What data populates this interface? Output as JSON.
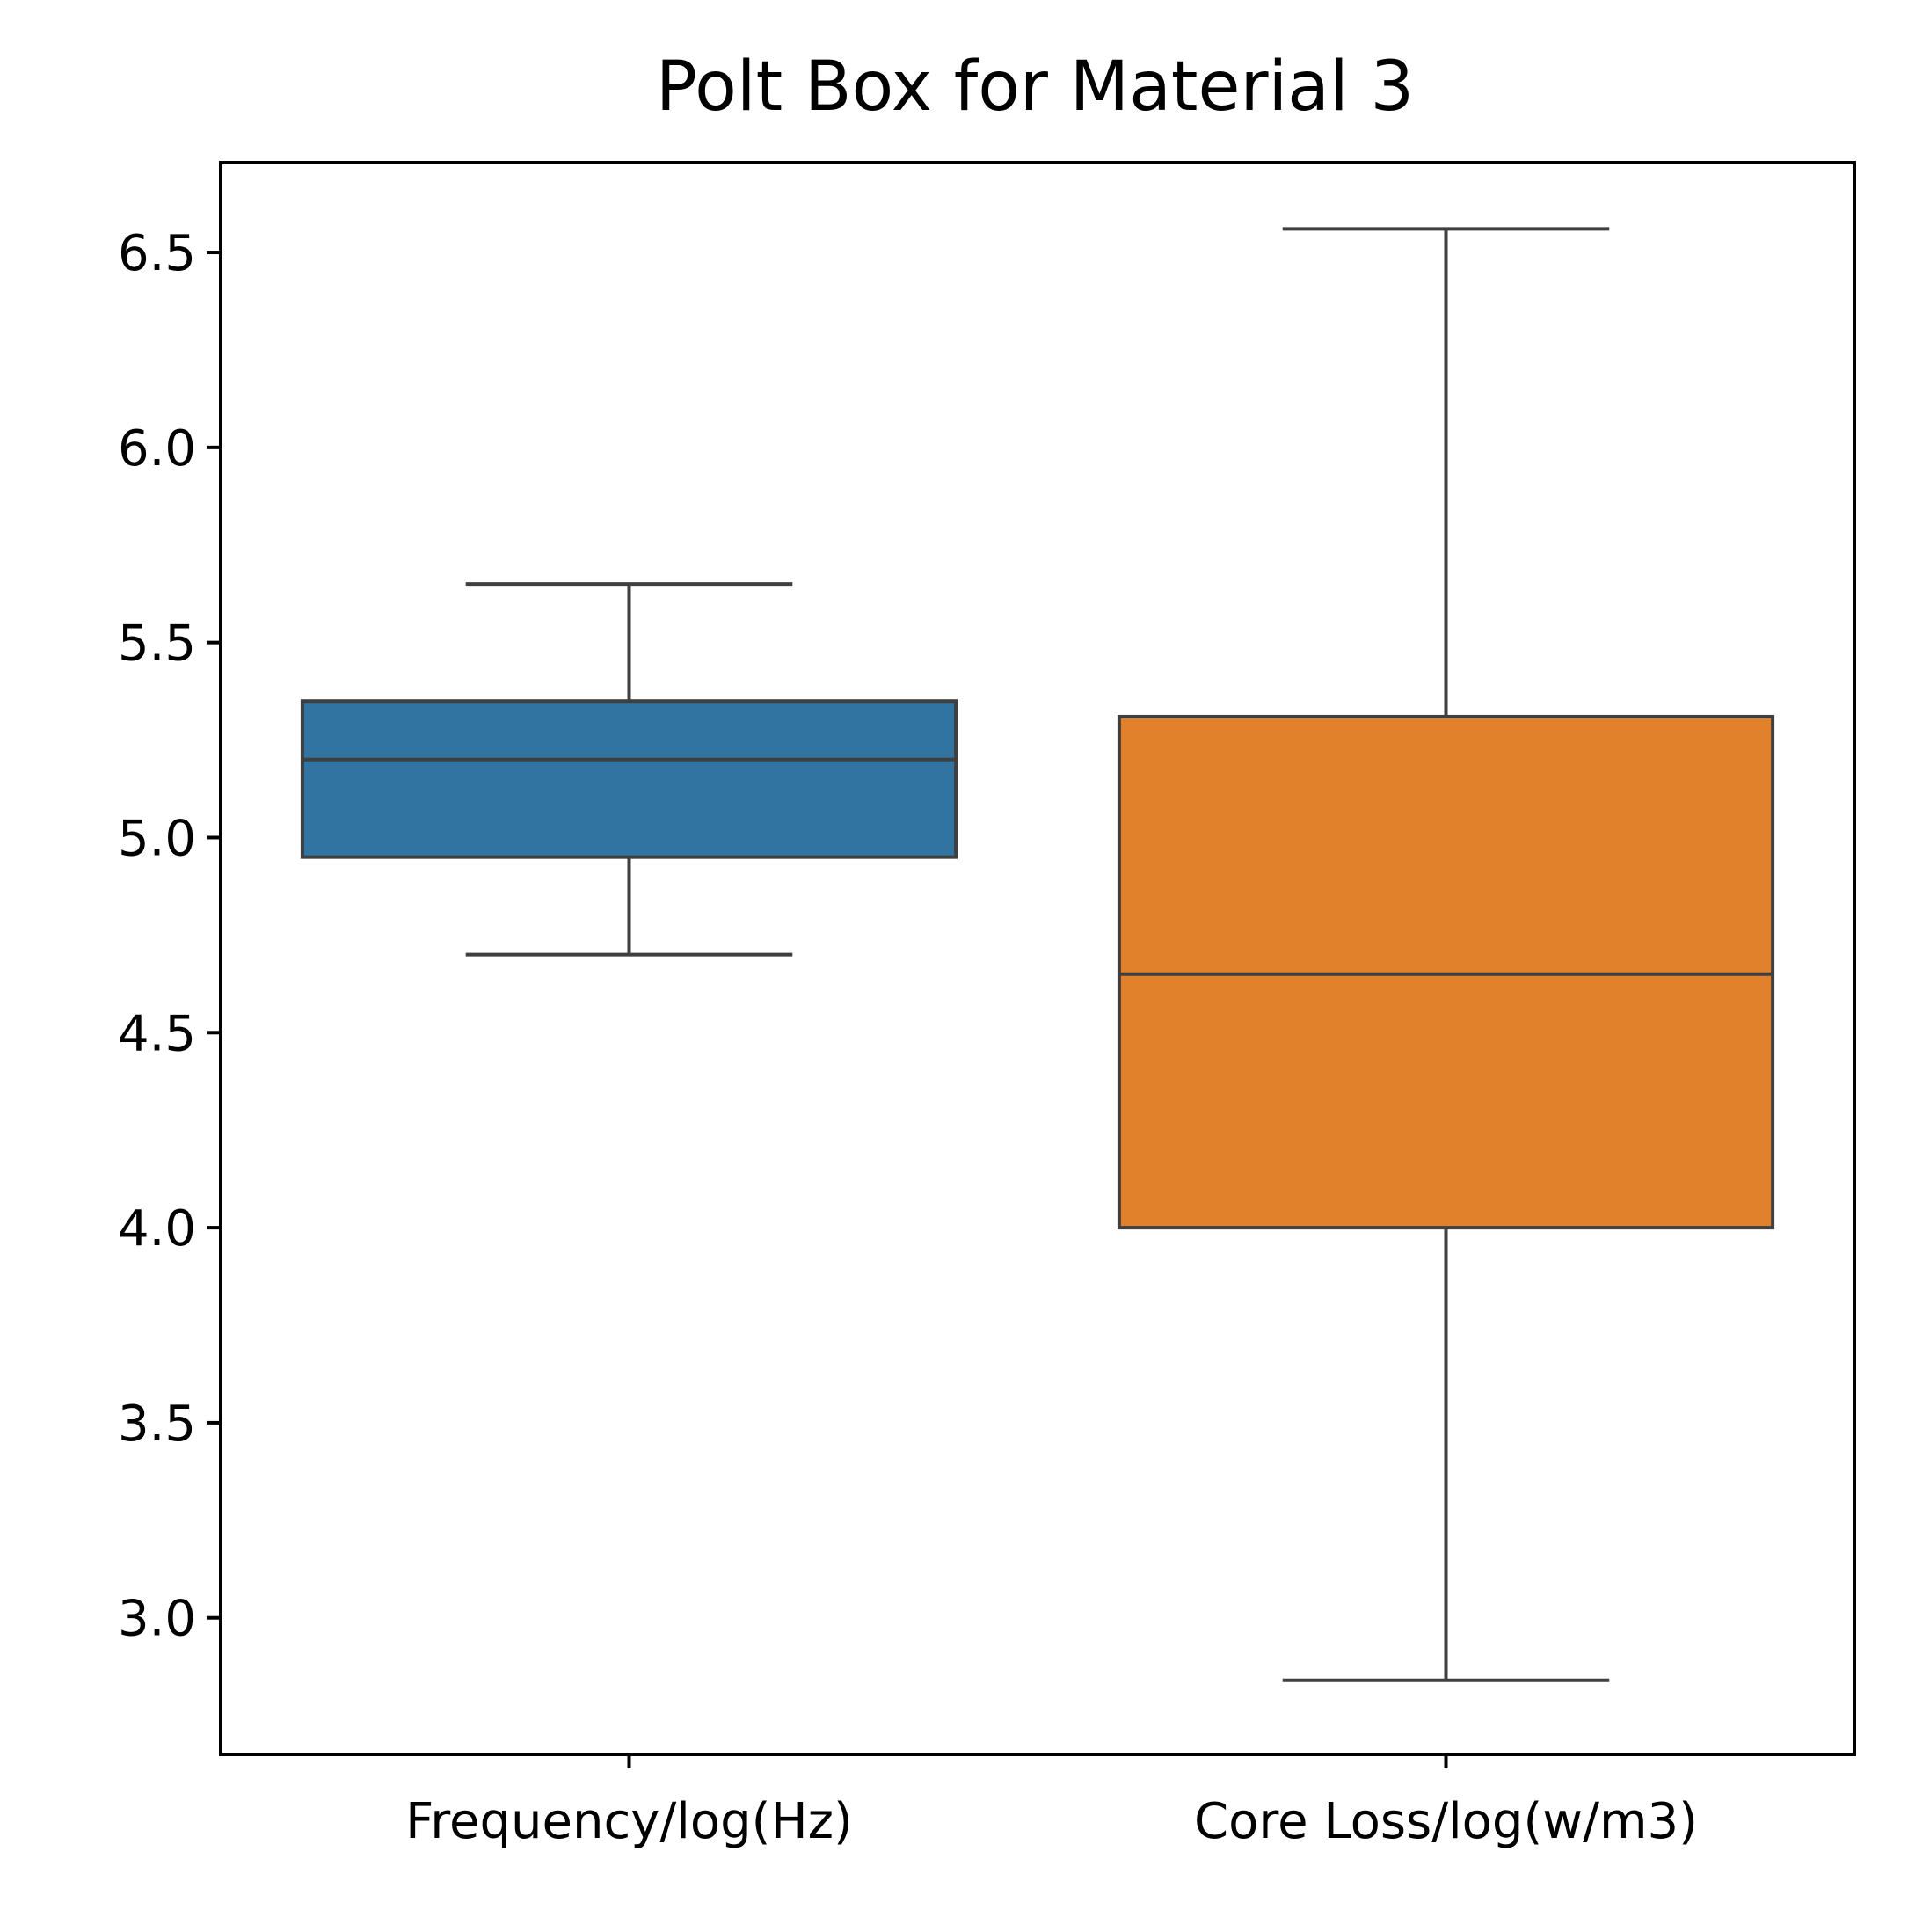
{
  "chart_data": {
    "type": "box",
    "title": "Polt Box for Material 3",
    "xlabel": "",
    "ylabel": "",
    "ylim": [
      2.65,
      6.73
    ],
    "yticks": [
      3.0,
      3.5,
      4.0,
      4.5,
      5.0,
      5.5,
      6.0,
      6.5
    ],
    "ytick_labels": [
      "3.0",
      "3.5",
      "4.0",
      "4.5",
      "5.0",
      "5.5",
      "6.0",
      "6.5"
    ],
    "grid": false,
    "legend": "none",
    "categories": [
      "Frequency/log(Hz)",
      "Core Loss/log(w/m3)"
    ],
    "boxes": [
      {
        "category": "Frequency/log(Hz)",
        "whisker_low": 4.7,
        "q1": 4.95,
        "median": 5.2,
        "q3": 5.35,
        "whisker_high": 5.65,
        "color": "#3274a1"
      },
      {
        "category": "Core Loss/log(w/m3)",
        "whisker_low": 2.84,
        "q1": 4.0,
        "median": 4.65,
        "q3": 5.31,
        "whisker_high": 6.56,
        "color": "#e1812c"
      }
    ],
    "line_color": "#3f3f3f"
  }
}
